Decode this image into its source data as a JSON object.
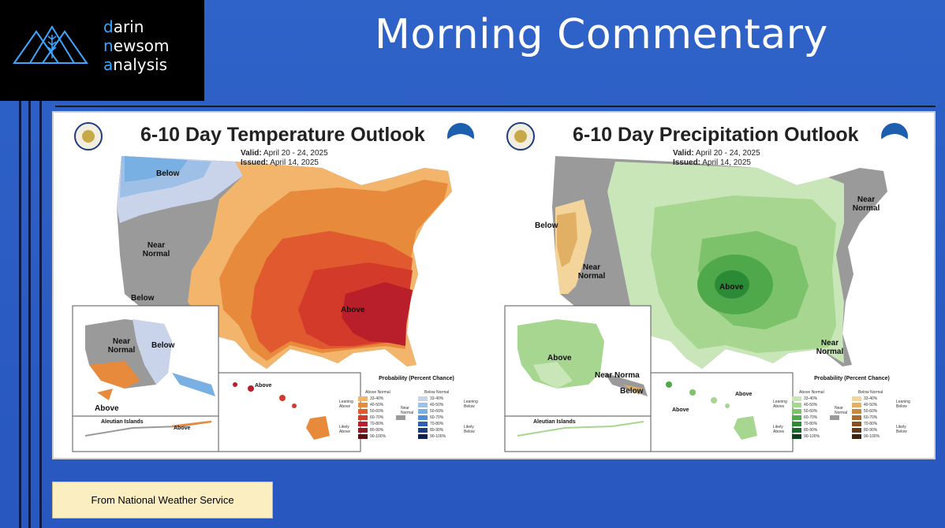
{
  "brand": {
    "line1_initial": "d",
    "line1_rest": "arin",
    "line2_initial": "n",
    "line2_rest": "ewsom",
    "line3_initial": "a",
    "line3_rest": "nalysis"
  },
  "page_title": "Morning Commentary",
  "source_note": "From National Weather Service",
  "colors": {
    "background": "#2f63c8",
    "logo_bg": "#000000",
    "logo_accent": "#3fa6ff",
    "note_bg": "#fbefc2"
  },
  "temperature_map": {
    "title": "6-10 Day Temperature Outlook",
    "valid_label": "Valid:",
    "valid_value": "April 20 - 24, 2025",
    "issued_label": "Issued:",
    "issued_value": "April 14, 2025",
    "labels": {
      "below_nw": "Below",
      "near_normal": "Near Normal",
      "below_sw": "Below",
      "above_se": "Above",
      "ak_near_normal": "Near Normal",
      "ak_below": "Below",
      "ak_above": "Above",
      "aleutian": "Aleutian Islands",
      "aleutian_above": "Above",
      "hi_above": "Above"
    },
    "legend": {
      "title": "Probability (Percent Chance)",
      "above_header": "Above Normal",
      "below_header": "Below Normal",
      "leaning_above": "Leaning Above",
      "likely_above": "Likely Above",
      "near_normal": "Near Normal",
      "leaning_below": "Leaning Below",
      "likely_below": "Likely Below",
      "ranges": [
        "33-40%",
        "40-50%",
        "50-60%",
        "60-70%",
        "70-80%",
        "80-90%",
        "90-100%"
      ],
      "above_colors": [
        "#f2b56b",
        "#e88a3c",
        "#e0592f",
        "#d33a2a",
        "#b81f2b",
        "#8e1a24",
        "#5a1014"
      ],
      "below_colors": [
        "#c9d3ea",
        "#9fc0e6",
        "#79b0e3",
        "#4f8fd6",
        "#2f5fb0",
        "#1e3c82",
        "#101f4e"
      ],
      "near_color": "#9a9a9a"
    }
  },
  "precipitation_map": {
    "title": "6-10 Day Precipitation Outlook",
    "valid_label": "Valid:",
    "valid_value": "April 20 - 24, 2025",
    "issued_label": "Issued:",
    "issued_value": "April 14, 2025",
    "labels": {
      "below_w": "Below",
      "near_normal_w": "Near Normal",
      "above_center": "Above",
      "near_normal_ne": "Near Normal",
      "near_normal_fl": "Near Normal",
      "ak_above": "Above",
      "ak_near_normal": "Near Norma",
      "ak_below": "Below",
      "aleutian": "Aleutian Islands",
      "hi_above_1": "Above",
      "hi_above_2": "Above"
    },
    "legend": {
      "title": "Probability (Percent Chance)",
      "above_header": "Above Normal",
      "below_header": "Below Normal",
      "leaning_above": "Leaning Above",
      "likely_above": "Likely Above",
      "near_normal": "Near Normal",
      "leaning_below": "Leaning Below",
      "likely_below": "Likely Below",
      "ranges": [
        "33-40%",
        "40-50%",
        "50-60%",
        "60-70%",
        "70-80%",
        "80-90%",
        "90-100%"
      ],
      "above_colors": [
        "#c8e6b8",
        "#a6d690",
        "#7cc26a",
        "#4fa94a",
        "#2b8a36",
        "#1b6a2a",
        "#0d3f18"
      ],
      "below_colors": [
        "#f3d49a",
        "#e2b064",
        "#c98a3e",
        "#a86c2f",
        "#874f22",
        "#653a18",
        "#3f230e"
      ],
      "near_color": "#9a9a9a"
    }
  }
}
